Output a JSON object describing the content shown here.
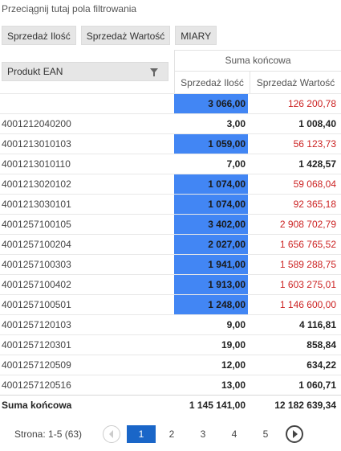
{
  "filter_hint": "Przeciągnij tutaj pola filtrowania",
  "chips": [
    "Sprzedaż Ilość",
    "Sprzedaż Wartość",
    "MIARY"
  ],
  "row_header": "Produkt EAN",
  "column_total": "Suma końcowa",
  "columns": [
    "Sprzedaż Ilość",
    "Sprzedaż Wartość"
  ],
  "rows": [
    {
      "label": "",
      "qty": "3 066,00",
      "val": "126 200,78",
      "highlight": true
    },
    {
      "label": "4001212040200",
      "qty": "3,00",
      "val": "1 008,40",
      "highlight": false
    },
    {
      "label": "4001213010103",
      "qty": "1 059,00",
      "val": "56 123,73",
      "highlight": true
    },
    {
      "label": "4001213010110",
      "qty": "7,00",
      "val": "1 428,57",
      "highlight": false
    },
    {
      "label": "4001213020102",
      "qty": "1 074,00",
      "val": "59 068,04",
      "highlight": true
    },
    {
      "label": "4001213030101",
      "qty": "1 074,00",
      "val": "92 365,18",
      "highlight": true
    },
    {
      "label": "4001257100105",
      "qty": "3 402,00",
      "val": "2 908 702,79",
      "highlight": true
    },
    {
      "label": "4001257100204",
      "qty": "2 027,00",
      "val": "1 656 765,52",
      "highlight": true
    },
    {
      "label": "4001257100303",
      "qty": "1 941,00",
      "val": "1 589 288,75",
      "highlight": true
    },
    {
      "label": "4001257100402",
      "qty": "1 913,00",
      "val": "1 603 275,01",
      "highlight": true
    },
    {
      "label": "4001257100501",
      "qty": "1 248,00",
      "val": "1 146 600,00",
      "highlight": true
    },
    {
      "label": "4001257120103",
      "qty": "9,00",
      "val": "4 116,81",
      "highlight": false
    },
    {
      "label": "4001257120301",
      "qty": "19,00",
      "val": "858,84",
      "highlight": false
    },
    {
      "label": "4001257120509",
      "qty": "12,00",
      "val": "634,22",
      "highlight": false
    },
    {
      "label": "4001257120516",
      "qty": "13,00",
      "val": "1 060,71",
      "highlight": false
    }
  ],
  "grand_total": {
    "label": "Suma końcowa",
    "qty": "1 145 141,00",
    "val": "12 182 639,34"
  },
  "pager": {
    "info": "Strona: 1-5 (63)",
    "pages": [
      "1",
      "2",
      "3",
      "4",
      "5"
    ],
    "active": "1"
  },
  "colors": {
    "highlight": "#4286f4",
    "red_value": "#cc2222",
    "active_page": "#1a66c8"
  },
  "icons": {
    "filter": "funnel-icon",
    "prev": "chevron-left-icon",
    "next": "chevron-right-icon"
  }
}
